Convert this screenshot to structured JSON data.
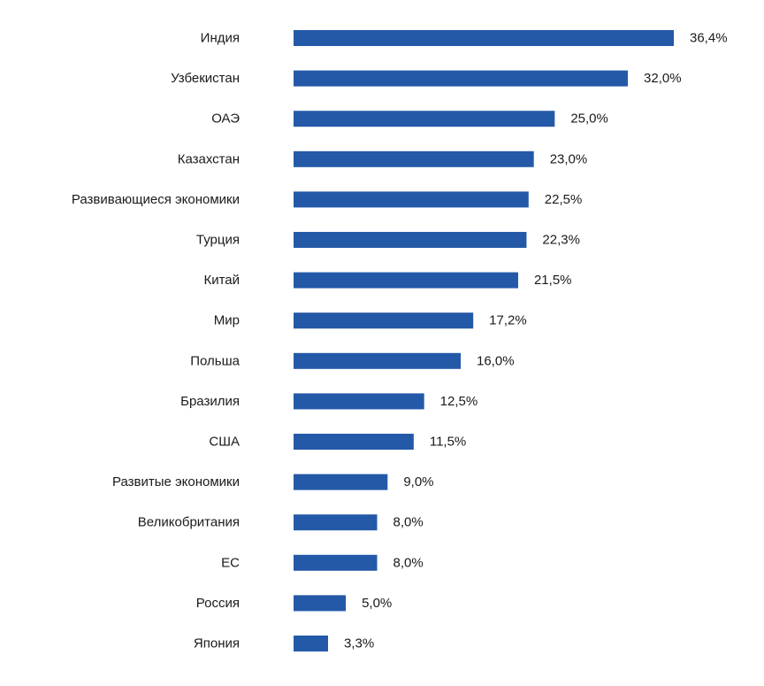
{
  "chart_data": {
    "type": "bar",
    "orientation": "horizontal",
    "categories": [
      "Индия",
      "Узбекистан",
      "ОАЭ",
      "Казахстан",
      "Развивающиеся экономики",
      "Турция",
      "Китай",
      "Мир",
      "Польша",
      "Бразилия",
      "США",
      "Развитые экономики",
      "Великобритания",
      "ЕС",
      "Россия",
      "Япония"
    ],
    "values": [
      36.4,
      32.0,
      25.0,
      23.0,
      22.5,
      22.3,
      21.5,
      17.2,
      16.0,
      12.5,
      11.5,
      9.0,
      8.0,
      8.0,
      5.0,
      3.3
    ],
    "value_labels": [
      "36,4%",
      "32,0%",
      "25,0%",
      "23,0%",
      "22,5%",
      "22,3%",
      "21,5%",
      "17,2%",
      "16,0%",
      "12,5%",
      "11,5%",
      "9,0%",
      "8,0%",
      "8,0%",
      "5,0%",
      "3,3%"
    ],
    "unit": "%",
    "title": "",
    "xlabel": "",
    "ylabel": "",
    "xlim": [
      0,
      36.4
    ],
    "grid": false,
    "legend": "none",
    "colors": {
      "bar": "#2459a8",
      "text": "#1a1a1a"
    }
  }
}
